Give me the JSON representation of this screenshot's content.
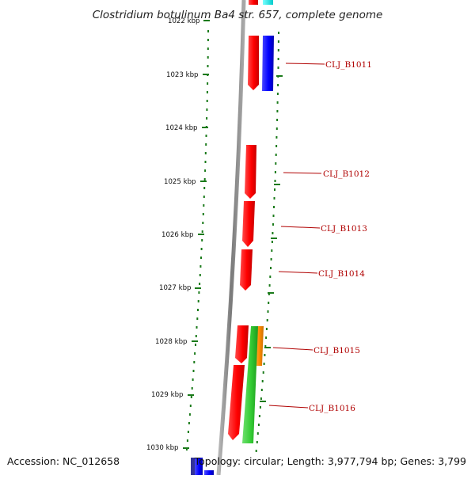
{
  "title": "Clostridium botulinum Ba4 str. 657, complete genome",
  "accession": "Accession: NC_012658",
  "summary": "Topology: circular; Length: 3,977,794 bp; Genes: 3,799",
  "ruler": {
    "labels": [
      "1022 kbp",
      "1023 kbp",
      "1024 kbp",
      "1025 kbp",
      "1026 kbp",
      "1027 kbp",
      "1028 kbp",
      "1029 kbp",
      "1030 kbp"
    ]
  },
  "genes": [
    {
      "locus": "CLJ_B1011",
      "strand": "forward",
      "color": "#0000ff"
    },
    {
      "locus": "CLJ_B1012",
      "strand": "reverse",
      "color": "#ff0000"
    },
    {
      "locus": "CLJ_B1013",
      "strand": "reverse",
      "color": "#ff0000"
    },
    {
      "locus": "CLJ_B1014",
      "strand": "reverse",
      "color": "#ff0000"
    },
    {
      "locus": "CLJ_B1015",
      "strand": "forward",
      "color": "#ff8c00"
    },
    {
      "locus": "CLJ_B1016",
      "strand": "forward",
      "color": "#33cc33"
    }
  ],
  "colors": {
    "backbone": "#8c8c8c",
    "dots": "#1a7a1a",
    "label": "#b00000"
  }
}
